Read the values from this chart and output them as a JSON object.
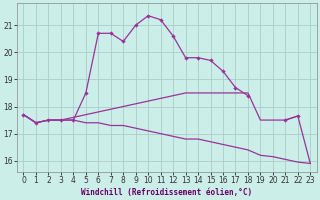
{
  "xlabel": "Windchill (Refroidissement éolien,°C)",
  "bg_color": "#cceee8",
  "grid_color": "#aacccc",
  "line_color": "#993399",
  "xlim": [
    -0.5,
    23.5
  ],
  "ylim": [
    15.6,
    21.8
  ],
  "yticks": [
    16,
    17,
    18,
    19,
    20,
    21
  ],
  "xticks": [
    0,
    1,
    2,
    3,
    4,
    5,
    6,
    7,
    8,
    9,
    10,
    11,
    12,
    13,
    14,
    15,
    16,
    17,
    18,
    19,
    20,
    21,
    22,
    23
  ],
  "main_x": [
    0,
    1,
    2,
    3,
    4,
    5,
    6,
    7,
    8,
    9,
    10,
    11,
    12,
    13,
    14,
    15,
    16,
    17,
    18,
    19,
    20,
    21,
    22,
    23
  ],
  "main_y": [
    17.7,
    17.4,
    17.5,
    17.5,
    17.5,
    18.5,
    20.7,
    20.7,
    20.4,
    21.0,
    21.35,
    21.2,
    20.6,
    19.8,
    19.8,
    19.7,
    19.3,
    18.7,
    18.4,
    null,
    null,
    17.5,
    17.65,
    null
  ],
  "mid_x": [
    0,
    1,
    2,
    3,
    4,
    5,
    6,
    7,
    8,
    9,
    10,
    11,
    12,
    13,
    14,
    15,
    16,
    17,
    18,
    19,
    20,
    21,
    22,
    23
  ],
  "mid_y": [
    17.7,
    17.4,
    17.5,
    17.5,
    17.6,
    17.7,
    17.8,
    17.9,
    18.0,
    18.1,
    18.2,
    18.3,
    18.4,
    18.5,
    18.5,
    18.5,
    18.5,
    18.5,
    18.5,
    17.5,
    17.5,
    17.5,
    17.65,
    15.9
  ],
  "bot_x": [
    0,
    1,
    2,
    3,
    4,
    5,
    6,
    7,
    8,
    9,
    10,
    11,
    12,
    13,
    14,
    15,
    16,
    17,
    18,
    19,
    20,
    21,
    22,
    23
  ],
  "bot_y": [
    17.7,
    17.4,
    17.5,
    17.5,
    17.5,
    17.4,
    17.4,
    17.3,
    17.3,
    17.2,
    17.1,
    17.0,
    16.9,
    16.8,
    16.8,
    16.7,
    16.6,
    16.5,
    16.4,
    16.2,
    16.15,
    16.05,
    15.95,
    15.9
  ]
}
